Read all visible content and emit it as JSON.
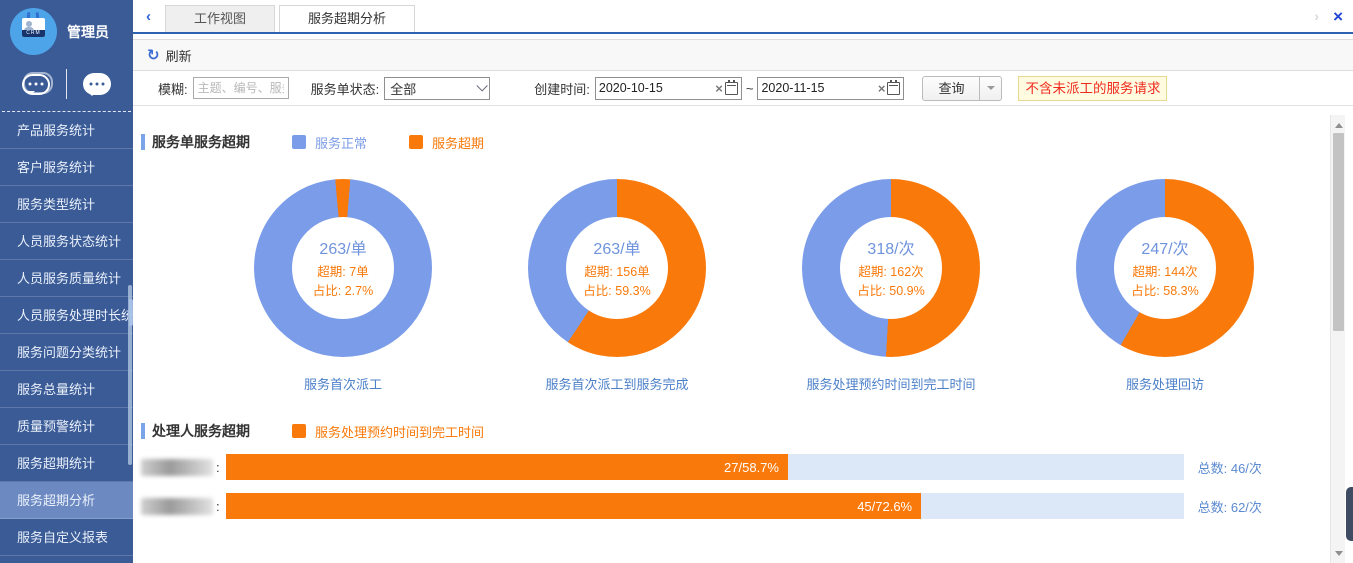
{
  "colors": {
    "blue": "#7b9ce8",
    "orange": "#f9790a",
    "sidebar": "#3a5b96",
    "accent": "#2e62b1",
    "bar_track": "#dce8f8",
    "notice_bg": "#fffbe1",
    "notice_text": "#ef2b1e"
  },
  "sidebar": {
    "user": {
      "name": "管理员",
      "badge": "CRM"
    },
    "menu": [
      {
        "label": "产品服务统计",
        "active": false
      },
      {
        "label": "客户服务统计",
        "active": false
      },
      {
        "label": "服务类型统计",
        "active": false
      },
      {
        "label": "人员服务状态统计",
        "active": false
      },
      {
        "label": "人员服务质量统计",
        "active": false
      },
      {
        "label": "人员服务处理时长统计",
        "active": false
      },
      {
        "label": "服务问题分类统计",
        "active": false
      },
      {
        "label": "服务总量统计",
        "active": false
      },
      {
        "label": "质量预警统计",
        "active": false
      },
      {
        "label": "服务超期统计",
        "active": false
      },
      {
        "label": "服务超期分析",
        "active": true
      },
      {
        "label": "服务自定义报表",
        "active": false
      }
    ]
  },
  "tabs": {
    "back": "‹",
    "forward": "›",
    "close": "×",
    "items": [
      {
        "label": "工作视图",
        "active": false
      },
      {
        "label": "服务超期分析",
        "active": true
      }
    ]
  },
  "toolbar": {
    "refresh_icon": "↻",
    "refresh_label": "刷新"
  },
  "filters": {
    "fuzzy_label": "模糊:",
    "fuzzy_placeholder": "主题、编号、服务内",
    "status_label": "服务单状态:",
    "status_value": "全部",
    "created_label": "创建时间:",
    "date_from": "2020-10-15",
    "date_to": "2020-11-15",
    "range_separator": "~",
    "clear_x": "×",
    "search_label": "查询",
    "notice": "不含未派工的服务请求"
  },
  "order_section": {
    "title": "服务单服务超期",
    "legend": [
      {
        "label": "服务正常",
        "color": "#7b9ce8"
      },
      {
        "label": "服务超期",
        "color": "#f9790a"
      }
    ],
    "donuts": [
      {
        "center_value": "263/单",
        "overdue": "超期: 7单",
        "ratio": "占比: 2.7%",
        "percent": 2.7,
        "start_deg": -5,
        "label": "服务首次派工"
      },
      {
        "center_value": "263/单",
        "overdue": "超期: 156单",
        "ratio": "占比: 59.3%",
        "percent": 59.3,
        "start_deg": 0,
        "label": "服务首次派工到服务完成"
      },
      {
        "center_value": "318/次",
        "overdue": "超期: 162次",
        "ratio": "占比: 50.9%",
        "percent": 50.9,
        "start_deg": 0,
        "label": "服务处理预约时间到完工时间"
      },
      {
        "center_value": "247/次",
        "overdue": "超期: 144次",
        "ratio": "占比: 58.3%",
        "percent": 58.3,
        "start_deg": 0,
        "label": "服务处理回访"
      }
    ]
  },
  "handler_section": {
    "title": "处理人服务超期",
    "legend": [
      {
        "label": "服务处理预约时间到完工时间",
        "color": "#f9790a"
      }
    ],
    "colon": ":",
    "rows": [
      {
        "bar_label": "27/58.7%",
        "percent": 58.7,
        "total": "总数: 46/次"
      },
      {
        "bar_label": "45/72.6%",
        "percent": 72.6,
        "total": "总数: 62/次"
      }
    ]
  },
  "chart_data": [
    {
      "type": "pie",
      "title": "服务首次派工",
      "labels": [
        "服务正常",
        "服务超期"
      ],
      "values": [
        256,
        7
      ],
      "unit": "单",
      "total": 263,
      "overdue_pct": 2.7
    },
    {
      "type": "pie",
      "title": "服务首次派工到服务完成",
      "labels": [
        "服务正常",
        "服务超期"
      ],
      "values": [
        107,
        156
      ],
      "unit": "单",
      "total": 263,
      "overdue_pct": 59.3
    },
    {
      "type": "pie",
      "title": "服务处理预约时间到完工时间",
      "labels": [
        "服务正常",
        "服务超期"
      ],
      "values": [
        156,
        162
      ],
      "unit": "次",
      "total": 318,
      "overdue_pct": 50.9
    },
    {
      "type": "pie",
      "title": "服务处理回访",
      "labels": [
        "服务正常",
        "服务超期"
      ],
      "values": [
        103,
        144
      ],
      "unit": "次",
      "total": 247,
      "overdue_pct": 58.3
    },
    {
      "type": "bar",
      "title": "处理人服务超期",
      "series_label": "服务处理预约时间到完工时间",
      "rows": [
        {
          "overdue": 27,
          "total": 46,
          "pct": 58.7
        },
        {
          "overdue": 45,
          "total": 62,
          "pct": 72.6
        }
      ]
    }
  ]
}
